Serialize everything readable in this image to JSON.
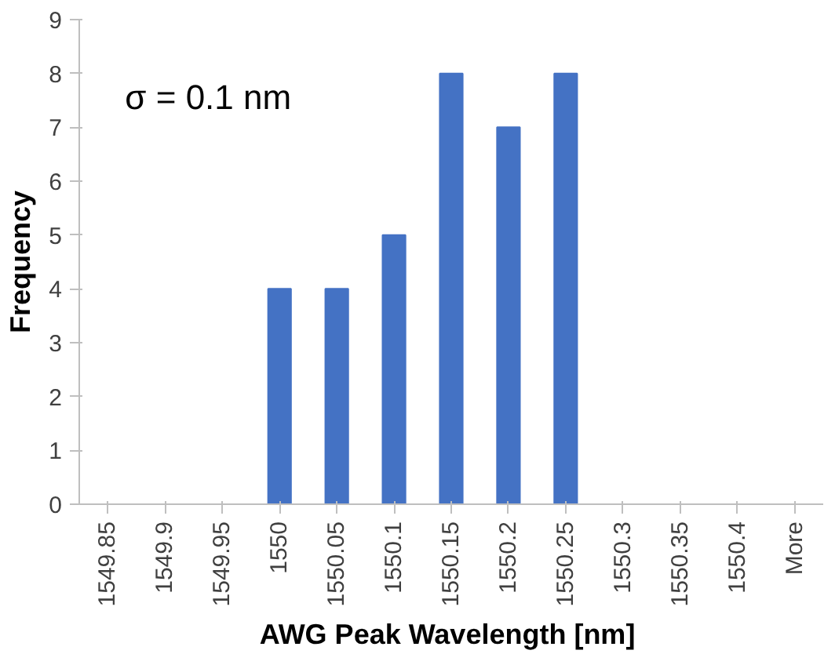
{
  "chart_data": {
    "type": "bar",
    "xlabel": "AWG Peak Wavelength  [nm]",
    "ylabel": "Frequency",
    "categories": [
      "1549.85",
      "1549.9",
      "1549.95",
      "1550",
      "1550.05",
      "1550.1",
      "1550.15",
      "1550.2",
      "1550.25",
      "1550.3",
      "1550.35",
      "1550.4",
      "More"
    ],
    "values": [
      0,
      0,
      0,
      4,
      4,
      5,
      8,
      7,
      8,
      0,
      0,
      0,
      0
    ],
    "color": "#4472c4",
    "ylim": [
      0,
      9
    ],
    "yticks": [
      0,
      1,
      2,
      3,
      4,
      5,
      6,
      7,
      8,
      9
    ],
    "grid": false,
    "annotations": [
      "σ = 0.1 nm"
    ]
  }
}
